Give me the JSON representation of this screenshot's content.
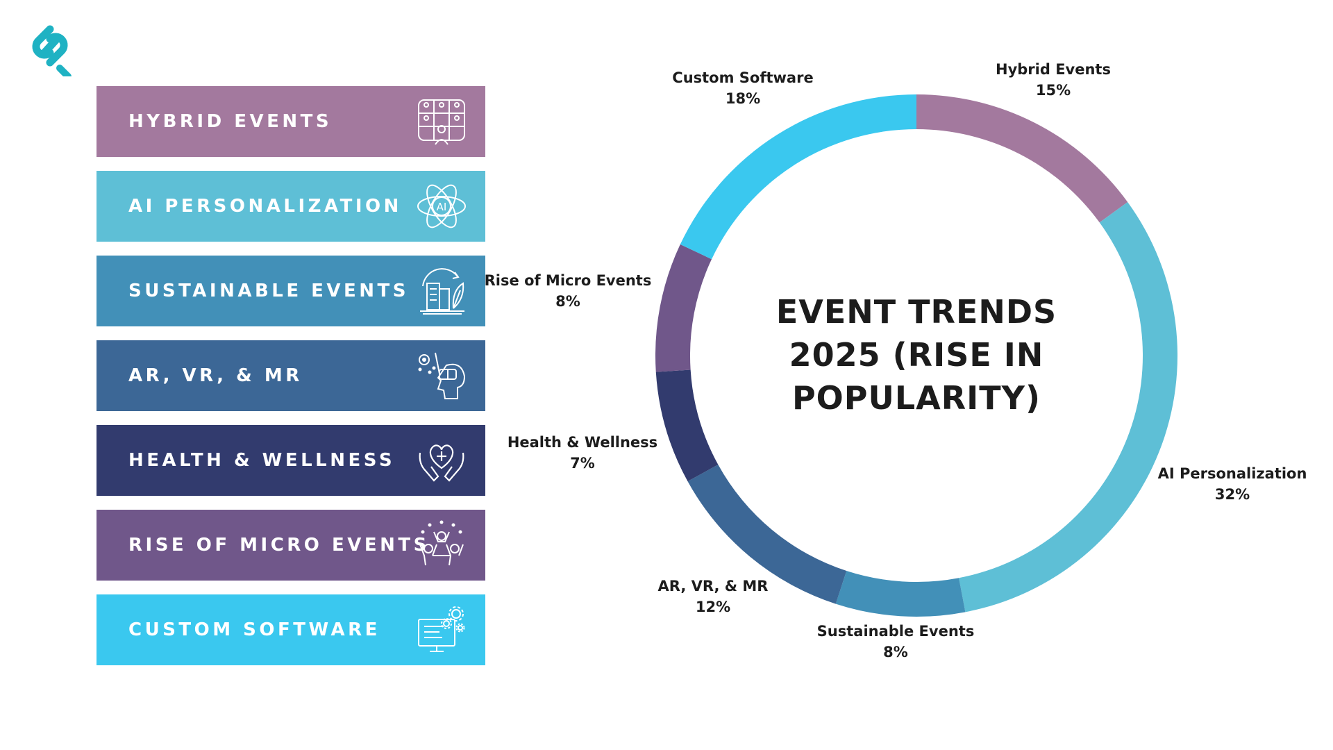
{
  "chart_data": {
    "type": "pie",
    "title_lines": [
      "EVENT TRENDS",
      "2025 (RISE IN",
      "POPULARITY)"
    ],
    "legend_position": "left",
    "series": [
      {
        "name": "Hybrid Events",
        "legend_label": "HYBRID EVENTS",
        "value": 15,
        "value_label": "15%",
        "color": "#A3799E",
        "icon": "virtual-audience-icon"
      },
      {
        "name": "AI Personalization",
        "legend_label": "AI PERSONALIZATION",
        "value": 32,
        "value_label": "32%",
        "color": "#5EBFD6",
        "icon": "ai-atom-icon"
      },
      {
        "name": "Sustainable Events",
        "legend_label": "SUSTAINABLE EVENTS",
        "value": 8,
        "value_label": "8%",
        "color": "#4290B8",
        "icon": "eco-building-icon"
      },
      {
        "name": "AR, VR, & MR",
        "legend_label": "AR, VR, & MR",
        "value": 12,
        "value_label": "12%",
        "color": "#3C6796",
        "icon": "vr-headset-icon"
      },
      {
        "name": "Health & Wellness",
        "legend_label": "HEALTH & WELLNESS",
        "value": 7,
        "value_label": "7%",
        "color": "#323B6E",
        "icon": "heart-hands-icon"
      },
      {
        "name": "Rise of Micro Events",
        "legend_label": "RISE OF MICRO EVENTS",
        "value": 8,
        "value_label": "8%",
        "color": "#70578A",
        "icon": "celebrating-people-icon"
      },
      {
        "name": "Custom Software",
        "legend_label": "CUSTOM SOFTWARE",
        "value": 18,
        "value_label": "18%",
        "color": "#3AC8EF",
        "icon": "software-gear-icon"
      }
    ]
  },
  "logo": {
    "icon": "brand-link-logo-icon",
    "color": "#1FB2C3"
  }
}
